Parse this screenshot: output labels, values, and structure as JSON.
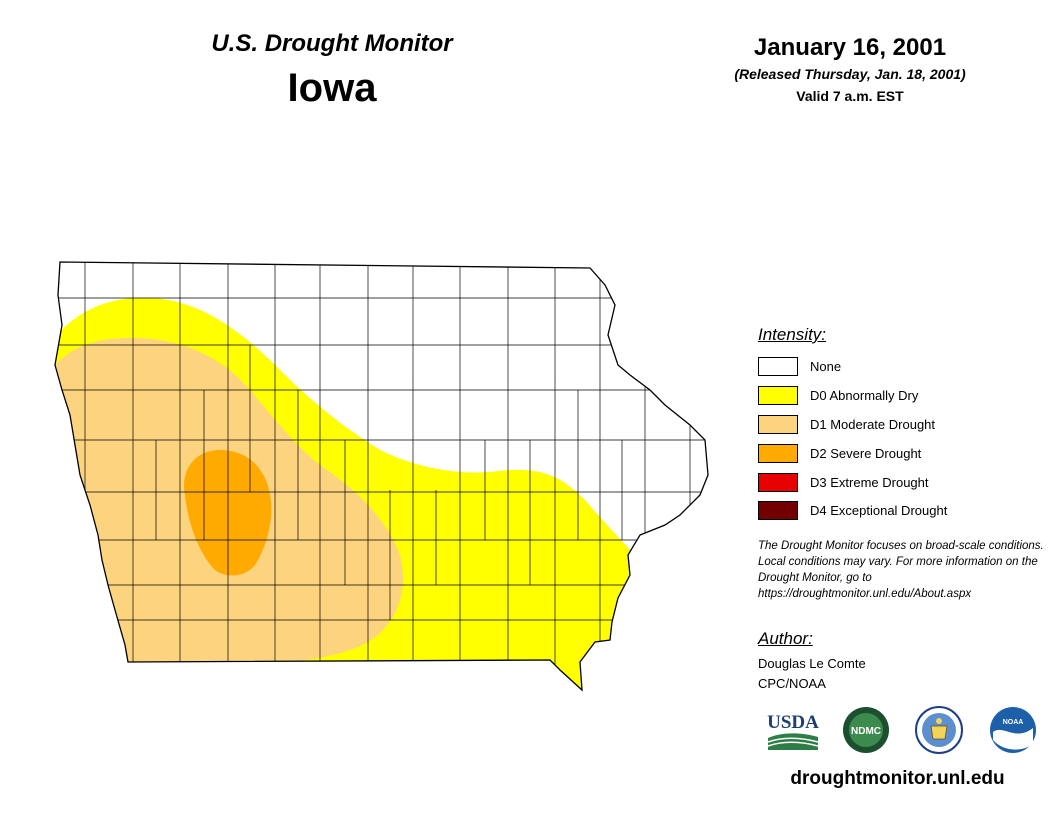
{
  "header": {
    "title": "U.S. Drought Monitor",
    "state": "Iowa",
    "date": "January 16, 2001",
    "released": "(Released Thursday, Jan. 18, 2001)",
    "valid": "Valid 7 a.m. EST"
  },
  "legend": {
    "title": "Intensity:",
    "items": [
      {
        "label": "None",
        "color": "#ffffff"
      },
      {
        "label": "D0 Abnormally Dry",
        "color": "#ffff00"
      },
      {
        "label": "D1 Moderate Drought",
        "color": "#fcd37f"
      },
      {
        "label": "D2 Severe Drought",
        "color": "#ffaa00"
      },
      {
        "label": "D3 Extreme Drought",
        "color": "#e60000"
      },
      {
        "label": "D4 Exceptional Drought",
        "color": "#730000"
      }
    ]
  },
  "note": "The Drought Monitor focuses on broad-scale conditions. Local conditions may vary. For more information on the Drought Monitor, go to https://droughtmonitor.unl.edu/About.aspx",
  "author": {
    "title": "Author:",
    "name": "Douglas Le Comte",
    "org": "CPC/NOAA"
  },
  "logos": [
    {
      "name": "usda-logo",
      "text": "USDA"
    },
    {
      "name": "ndmc-logo",
      "text": "NDMC"
    },
    {
      "name": "doc-seal-logo",
      "text": ""
    },
    {
      "name": "noaa-logo",
      "text": "NOAA"
    }
  ],
  "website": "droughtmonitor.unl.edu"
}
